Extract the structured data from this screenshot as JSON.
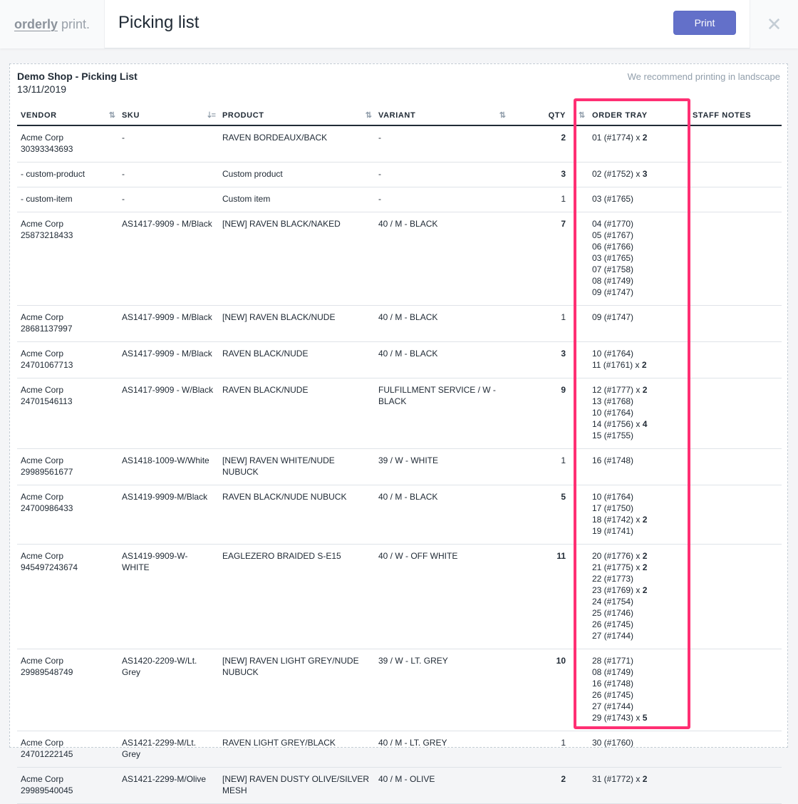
{
  "app": {
    "logo_bold": "orderly",
    "logo_light": "print.",
    "title": "Picking list",
    "print_label": "Print",
    "close_icon": "close-icon"
  },
  "list": {
    "shop_title": "Demo Shop - Picking List",
    "date": "13/11/2019",
    "recommend": "We recommend printing in landscape"
  },
  "columns": [
    "VENDOR",
    "SKU",
    "PRODUCT",
    "VARIANT",
    "QTY",
    "ORDER TRAY",
    "STAFF NOTES"
  ],
  "highlight_color": "#ff2f73",
  "rows": [
    {
      "vendor": [
        "Acme Corp",
        "30393343693"
      ],
      "sku": "-",
      "product": "RAVEN BORDEAUX/BACK",
      "variant": "-",
      "qty": "2",
      "qty_bold": true,
      "trays": [
        {
          "label": "01 (#1774)",
          "count": "2"
        }
      ]
    },
    {
      "vendor": [
        "- custom-product"
      ],
      "sku": "-",
      "product": "Custom product",
      "variant": "-",
      "qty": "3",
      "qty_bold": true,
      "trays": [
        {
          "label": "02 (#1752)",
          "count": "3"
        }
      ]
    },
    {
      "vendor": [
        "- custom-item"
      ],
      "sku": "-",
      "product": "Custom item",
      "variant": "-",
      "qty": "1",
      "qty_bold": false,
      "trays": [
        {
          "label": "03 (#1765)"
        }
      ]
    },
    {
      "vendor": [
        "Acme Corp",
        "25873218433"
      ],
      "sku": "AS1417-9909 - M/Black",
      "product": "[NEW] RAVEN BLACK/NAKED",
      "variant": "40 / M - BLACK",
      "qty": "7",
      "qty_bold": true,
      "trays": [
        {
          "label": "04 (#1770)"
        },
        {
          "label": "05 (#1767)"
        },
        {
          "label": "06 (#1766)"
        },
        {
          "label": "03 (#1765)"
        },
        {
          "label": "07 (#1758)"
        },
        {
          "label": "08 (#1749)"
        },
        {
          "label": "09 (#1747)"
        }
      ]
    },
    {
      "vendor": [
        "Acme Corp",
        "28681137997"
      ],
      "sku": "AS1417-9909 - M/Black",
      "product": "[NEW] RAVEN BLACK/NUDE",
      "variant": "40 / M - BLACK",
      "qty": "1",
      "qty_bold": false,
      "trays": [
        {
          "label": "09 (#1747)"
        }
      ]
    },
    {
      "vendor": [
        "Acme Corp",
        "24701067713"
      ],
      "sku": "AS1417-9909 - M/Black",
      "product": "RAVEN BLACK/NUDE",
      "variant": "40 / M - BLACK",
      "qty": "3",
      "qty_bold": true,
      "trays": [
        {
          "label": "10 (#1764)"
        },
        {
          "label": "11 (#1761)",
          "count": "2"
        }
      ]
    },
    {
      "vendor": [
        "Acme Corp",
        "24701546113"
      ],
      "sku": "AS1417-9909 - W/Black",
      "product": "RAVEN BLACK/NUDE",
      "variant": "FULFILLMENT SERVICE / W - BLACK",
      "qty": "9",
      "qty_bold": true,
      "trays": [
        {
          "label": "12 (#1777)",
          "count": "2"
        },
        {
          "label": "13 (#1768)"
        },
        {
          "label": "10 (#1764)"
        },
        {
          "label": "14 (#1756)",
          "count": "4"
        },
        {
          "label": "15 (#1755)"
        }
      ]
    },
    {
      "vendor": [
        "Acme Corp",
        "29989561677"
      ],
      "sku": "AS1418-1009-W/White",
      "product": "[NEW] RAVEN WHITE/NUDE NUBUCK",
      "variant": "39 / W - WHITE",
      "qty": "1",
      "qty_bold": false,
      "trays": [
        {
          "label": "16 (#1748)"
        }
      ]
    },
    {
      "vendor": [
        "Acme Corp",
        "24700986433"
      ],
      "sku": "AS1419-9909-M/Black",
      "product": "RAVEN BLACK/NUDE NUBUCK",
      "variant": "40 / M - BLACK",
      "qty": "5",
      "qty_bold": true,
      "trays": [
        {
          "label": "10 (#1764)"
        },
        {
          "label": "17 (#1750)"
        },
        {
          "label": "18 (#1742)",
          "count": "2"
        },
        {
          "label": "19 (#1741)"
        }
      ]
    },
    {
      "vendor": [
        "Acme Corp",
        "945497243674"
      ],
      "sku": "AS1419-9909-W-WHITE",
      "product": "EAGLEZERO BRAIDED S-E15",
      "variant": "40 / W - OFF WHITE",
      "qty": "11",
      "qty_bold": true,
      "trays": [
        {
          "label": "20 (#1776)",
          "count": "2"
        },
        {
          "label": "21 (#1775)",
          "count": "2"
        },
        {
          "label": "22 (#1773)"
        },
        {
          "label": "23 (#1769)",
          "count": "2"
        },
        {
          "label": "24 (#1754)"
        },
        {
          "label": "25 (#1746)"
        },
        {
          "label": "26 (#1745)"
        },
        {
          "label": "27 (#1744)"
        }
      ]
    },
    {
      "vendor": [
        "Acme Corp",
        "29989548749"
      ],
      "sku": "AS1420-2209-W/Lt. Grey",
      "product": "[NEW] RAVEN LIGHT GREY/NUDE NUBUCK",
      "variant": "39 / W - LT. GREY",
      "qty": "10",
      "qty_bold": true,
      "trays": [
        {
          "label": "28 (#1771)"
        },
        {
          "label": "08 (#1749)"
        },
        {
          "label": "16 (#1748)"
        },
        {
          "label": "26 (#1745)"
        },
        {
          "label": "27 (#1744)"
        },
        {
          "label": "29 (#1743)",
          "count": "5"
        }
      ]
    },
    {
      "vendor": [
        "Acme Corp",
        "24701222145"
      ],
      "sku": "AS1421-2299-M/Lt. Grey",
      "product": "RAVEN LIGHT GREY/BLACK",
      "variant": "40 / M - LT. GREY",
      "qty": "1",
      "qty_bold": false,
      "trays": [
        {
          "label": "30 (#1760)"
        }
      ]
    },
    {
      "vendor": [
        "Acme Corp",
        "29989540045"
      ],
      "sku": "AS1421-2299-M/Olive",
      "product": "[NEW] RAVEN DUSTY OLIVE/SILVER MESH",
      "variant": "40 / M - OLIVE",
      "qty": "2",
      "qty_bold": true,
      "trays": [
        {
          "label": "31 (#1772)",
          "count": "2"
        }
      ]
    }
  ]
}
